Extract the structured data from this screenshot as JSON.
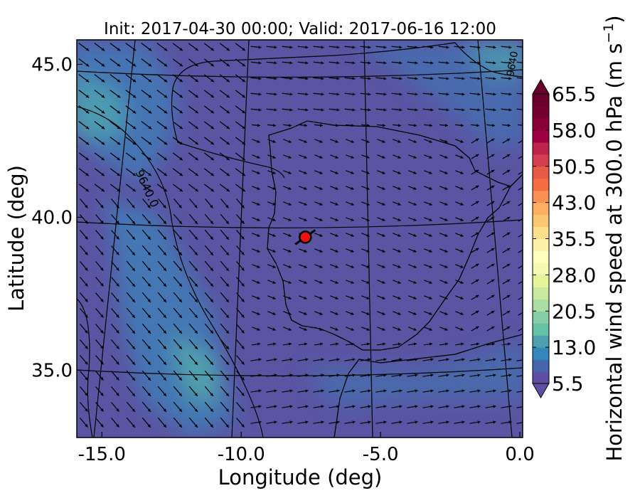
{
  "title": "Init: 2017-04-30 00:00; Valid: 2017-06-16 12:00",
  "x_axis": {
    "label": "Longitude (deg)",
    "range": [
      -15.9,
      0.1
    ],
    "ticks": [
      {
        "value": -15,
        "label": "-15.0"
      },
      {
        "value": -10,
        "label": "-10.0"
      },
      {
        "value": -5,
        "label": "-5.0"
      },
      {
        "value": 0,
        "label": "0.0"
      }
    ]
  },
  "y_axis": {
    "label": "Latitude (deg)",
    "range": [
      32.8,
      45.8
    ],
    "ticks": [
      {
        "value": 45,
        "label": "45.0"
      },
      {
        "value": 40,
        "label": "40.0"
      },
      {
        "value": 35,
        "label": "35.0"
      }
    ]
  },
  "colorbar": {
    "label": "Horizontal wind speed at 300.0 hPa (m s",
    "label_superscript": "−1",
    "label_suffix": ")",
    "min": 5.5,
    "max": 65.5,
    "step": 2.5,
    "extend": "both",
    "colors": [
      "#5e4fa2",
      "#4665ad",
      "#3288bd",
      "#4ea0b1",
      "#66c2a5",
      "#86cfa5",
      "#abdda4",
      "#cbe99e",
      "#e6f598",
      "#f4fab0",
      "#ffffbf",
      "#fff0a8",
      "#fee08b",
      "#fdc675",
      "#fdae61",
      "#f89153",
      "#f46d43",
      "#e85a48",
      "#d53e4f",
      "#bc2449",
      "#9e0142",
      "#8a0138",
      "#750130",
      "#6a012a"
    ],
    "ticks": [
      {
        "value": 5.5,
        "label": "5.5"
      },
      {
        "value": 13.0,
        "label": "13.0"
      },
      {
        "value": 20.5,
        "label": "20.5"
      },
      {
        "value": 28.0,
        "label": "28.0"
      },
      {
        "value": 35.5,
        "label": "35.5"
      },
      {
        "value": 43.0,
        "label": "43.0"
      },
      {
        "value": 50.5,
        "label": "50.5"
      },
      {
        "value": 58.0,
        "label": "58.0"
      },
      {
        "value": 65.5,
        "label": "65.5"
      }
    ]
  },
  "contour": {
    "label": "9640.0",
    "label_edge": "9640"
  },
  "marker": {
    "lon": -7.7,
    "lat": 39.35,
    "color": "#ee1111"
  },
  "chart_data": {
    "type": "heatmap",
    "title": "Init: 2017-04-30 00:00; Valid: 2017-06-16 12:00",
    "xlabel": "Longitude (deg)",
    "ylabel": "Latitude (deg)",
    "xlim": [
      -15.9,
      0.1
    ],
    "ylim": [
      32.8,
      45.8
    ],
    "field": "Horizontal wind speed at 300.0 hPa",
    "units": "m s-1",
    "range": [
      5.5,
      65.5
    ],
    "jet_cores": [
      {
        "lon": -15.0,
        "lat": 43.5,
        "speed": 18
      },
      {
        "lon": -11.5,
        "lat": 34.5,
        "speed": 16
      },
      {
        "lon": -0.5,
        "lat": 45.5,
        "speed": 15
      }
    ],
    "background_speed": 7,
    "contour_values": [
      9640.0
    ],
    "marker_point": {
      "lon": -7.7,
      "lat": 39.35
    }
  }
}
